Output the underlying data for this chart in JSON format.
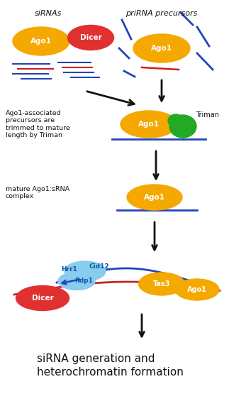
{
  "bg_color": "#ffffff",
  "figsize": [
    3.23,
    5.72
  ],
  "dpi": 100,
  "title_top_left": "siRNAs",
  "title_top_right": "priRNA precursors",
  "ago1_color": "#F5A800",
  "dicer_color": "#E03030",
  "triman_color": "#22AA22",
  "hrr1_cid12_color": "#88CCEE",
  "tas3_color": "#F5A800",
  "blue_line_color": "#2244BB",
  "red_line_color": "#CC2222",
  "arrow_color": "#111111",
  "text_color": "#111111",
  "bottom_text": "siRNA generation and\nheterochromatin formation",
  "left_text1": "Ago1-associated\nprecursors are\ntrimmed to mature\nlength by Triman",
  "left_text2": "mature Ago1:sRNA\ncomplex"
}
